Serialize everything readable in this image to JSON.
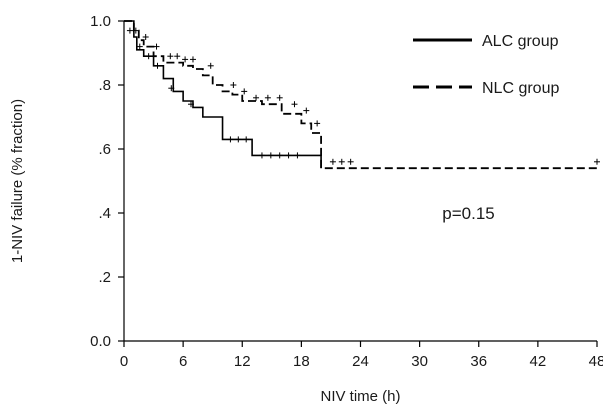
{
  "chart_data": {
    "type": "line",
    "title": "",
    "xlabel": "NIV time (h)",
    "ylabel": "1-NIV failure (% fraction)",
    "xlim": [
      0,
      48
    ],
    "ylim": [
      0,
      1
    ],
    "xticks": [
      0,
      6,
      12,
      18,
      24,
      30,
      36,
      42,
      48
    ],
    "xtick_labels": [
      "0",
      "6",
      "12",
      "18",
      "24",
      "30",
      "36",
      "42",
      "48"
    ],
    "yticks": [
      0,
      0.2,
      0.4,
      0.6,
      0.8,
      1.0
    ],
    "ytick_labels": [
      "0.0",
      ".2",
      ".4",
      ".6",
      ".8",
      "1.0"
    ],
    "grid": false,
    "legend_position": "top-right",
    "annotation": "p=0.15",
    "series": [
      {
        "name": "ALC group",
        "style": "solid",
        "color": "#000000",
        "steps": [
          [
            0,
            1.0
          ],
          [
            1,
            0.95
          ],
          [
            1.3,
            0.91
          ],
          [
            2,
            0.89
          ],
          [
            3,
            0.86
          ],
          [
            4,
            0.82
          ],
          [
            5,
            0.78
          ],
          [
            6,
            0.75
          ],
          [
            7,
            0.73
          ],
          [
            8,
            0.7
          ],
          [
            10,
            0.63
          ],
          [
            13,
            0.58
          ],
          [
            19,
            0.58
          ],
          [
            20,
            0.54
          ]
        ],
        "end_x": 20,
        "censored": [
          [
            0.6,
            0.97
          ],
          [
            1.6,
            0.92
          ],
          [
            2.5,
            0.89
          ],
          [
            3.4,
            0.86
          ],
          [
            4.8,
            0.79
          ],
          [
            6.8,
            0.74
          ],
          [
            10.8,
            0.63
          ],
          [
            11.6,
            0.63
          ],
          [
            12.4,
            0.63
          ],
          [
            14,
            0.58
          ],
          [
            14.9,
            0.58
          ],
          [
            15.8,
            0.58
          ],
          [
            16.7,
            0.58
          ],
          [
            17.6,
            0.58
          ]
        ]
      },
      {
        "name": "NLC group",
        "style": "dashed",
        "color": "#000000",
        "steps": [
          [
            0,
            1.0
          ],
          [
            1,
            0.97
          ],
          [
            1.5,
            0.94
          ],
          [
            2,
            0.92
          ],
          [
            3,
            0.89
          ],
          [
            4,
            0.87
          ],
          [
            6,
            0.86
          ],
          [
            7,
            0.85
          ],
          [
            8,
            0.83
          ],
          [
            9,
            0.8
          ],
          [
            10,
            0.78
          ],
          [
            11,
            0.77
          ],
          [
            12,
            0.75
          ],
          [
            14,
            0.74
          ],
          [
            16,
            0.71
          ],
          [
            18,
            0.68
          ],
          [
            19,
            0.65
          ],
          [
            20,
            0.54
          ]
        ],
        "end_x": 48,
        "censored": [
          [
            1.2,
            0.97
          ],
          [
            2.2,
            0.95
          ],
          [
            3.3,
            0.92
          ],
          [
            4.7,
            0.89
          ],
          [
            5.4,
            0.89
          ],
          [
            6.2,
            0.88
          ],
          [
            7.0,
            0.88
          ],
          [
            8.8,
            0.86
          ],
          [
            11.1,
            0.8
          ],
          [
            12.2,
            0.78
          ],
          [
            13.4,
            0.76
          ],
          [
            14.6,
            0.76
          ],
          [
            15.8,
            0.76
          ],
          [
            17.3,
            0.74
          ],
          [
            18.5,
            0.72
          ],
          [
            19.6,
            0.68
          ],
          [
            21.2,
            0.56
          ],
          [
            22.1,
            0.56
          ],
          [
            23.0,
            0.56
          ],
          [
            48,
            0.56
          ]
        ]
      }
    ]
  }
}
